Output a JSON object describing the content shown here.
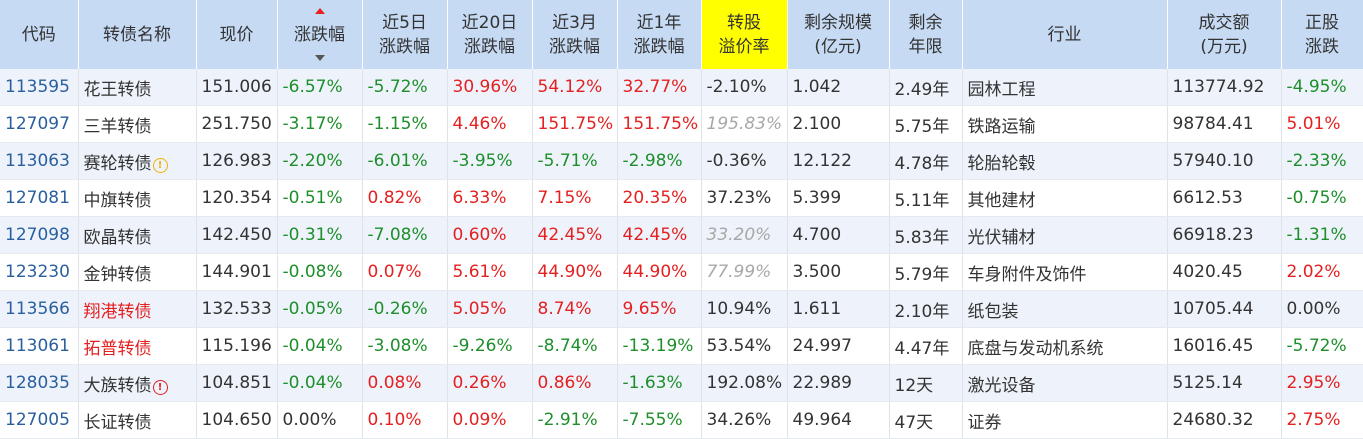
{
  "headers": [
    {
      "line1": "代码",
      "line2": ""
    },
    {
      "line1": "转债名称",
      "line2": ""
    },
    {
      "line1": "现价",
      "line2": ""
    },
    {
      "line1": "涨跌幅",
      "line2": ""
    },
    {
      "line1": "近5日",
      "line2": "涨跌幅"
    },
    {
      "line1": "近20日",
      "line2": "涨跌幅"
    },
    {
      "line1": "近3月",
      "line2": "涨跌幅"
    },
    {
      "line1": "近1年",
      "line2": "涨跌幅"
    },
    {
      "line1": "转股",
      "line2": "溢价率"
    },
    {
      "line1": "剩余规模",
      "line2": "(亿元)"
    },
    {
      "line1": "剩余",
      "line2": "年限"
    },
    {
      "line1": "行业",
      "line2": ""
    },
    {
      "line1": "成交额",
      "line2": "(万元)"
    },
    {
      "line1": "正股",
      "line2": "涨跌"
    }
  ],
  "warn_icon_glyph": "!",
  "colors": {
    "up": "#e42020",
    "down": "#1d8f2a",
    "code": "#2a5f9e",
    "header_bg": "#c6daf3",
    "highlight_header": "#ffff00",
    "muted": "#a8a8a8"
  },
  "rows": [
    {
      "code": "113595",
      "name": "花王转债",
      "name_color": "normal",
      "warn": "",
      "price": "151.006",
      "chg": "-6.57%",
      "chg5": "-5.72%",
      "chg20": "30.96%",
      "chg3m": "54.12%",
      "chg1y": "32.77%",
      "premium": "-2.10%",
      "premium_muted": false,
      "scale": "1.042",
      "years": "2.49年",
      "industry": "园林工程",
      "volume": "113774.92",
      "stock_chg": "-4.95%"
    },
    {
      "code": "127097",
      "name": "三羊转债",
      "name_color": "normal",
      "warn": "",
      "price": "251.750",
      "chg": "-3.17%",
      "chg5": "-1.15%",
      "chg20": "4.46%",
      "chg3m": "151.75%",
      "chg1y": "151.75%",
      "premium": "195.83%",
      "premium_muted": true,
      "scale": "2.100",
      "years": "5.75年",
      "industry": "铁路运输",
      "volume": "98784.41",
      "stock_chg": "5.01%"
    },
    {
      "code": "113063",
      "name": "赛轮转债",
      "name_color": "normal",
      "warn": "yellow",
      "price": "126.983",
      "chg": "-2.20%",
      "chg5": "-6.01%",
      "chg20": "-3.95%",
      "chg3m": "-5.71%",
      "chg1y": "-2.98%",
      "premium": "-0.36%",
      "premium_muted": false,
      "scale": "12.122",
      "years": "4.78年",
      "industry": "轮胎轮毂",
      "volume": "57940.10",
      "stock_chg": "-2.33%"
    },
    {
      "code": "127081",
      "name": "中旗转债",
      "name_color": "normal",
      "warn": "",
      "price": "120.354",
      "chg": "-0.51%",
      "chg5": "0.82%",
      "chg20": "6.33%",
      "chg3m": "7.15%",
      "chg1y": "20.35%",
      "premium": "37.23%",
      "premium_muted": false,
      "scale": "5.399",
      "years": "5.11年",
      "industry": "其他建材",
      "volume": "6612.53",
      "stock_chg": "-0.75%"
    },
    {
      "code": "127098",
      "name": "欧晶转债",
      "name_color": "normal",
      "warn": "",
      "price": "142.450",
      "chg": "-0.31%",
      "chg5": "-7.08%",
      "chg20": "0.60%",
      "chg3m": "42.45%",
      "chg1y": "42.45%",
      "premium": "33.20%",
      "premium_muted": true,
      "scale": "4.700",
      "years": "5.83年",
      "industry": "光伏辅材",
      "volume": "66918.23",
      "stock_chg": "-1.31%"
    },
    {
      "code": "123230",
      "name": "金钟转债",
      "name_color": "normal",
      "warn": "",
      "price": "144.901",
      "chg": "-0.08%",
      "chg5": "0.07%",
      "chg20": "5.61%",
      "chg3m": "44.90%",
      "chg1y": "44.90%",
      "premium": "77.99%",
      "premium_muted": true,
      "scale": "3.500",
      "years": "5.79年",
      "industry": "车身附件及饰件",
      "volume": "4020.45",
      "stock_chg": "2.02%"
    },
    {
      "code": "113566",
      "name": "翔港转债",
      "name_color": "red",
      "warn": "",
      "price": "132.533",
      "chg": "-0.05%",
      "chg5": "-0.26%",
      "chg20": "5.05%",
      "chg3m": "8.74%",
      "chg1y": "9.65%",
      "premium": "10.94%",
      "premium_muted": false,
      "scale": "1.611",
      "years": "2.10年",
      "industry": "纸包装",
      "volume": "10705.44",
      "stock_chg": "0.00%"
    },
    {
      "code": "113061",
      "name": "拓普转债",
      "name_color": "red",
      "warn": "",
      "price": "115.196",
      "chg": "-0.04%",
      "chg5": "-3.08%",
      "chg20": "-9.26%",
      "chg3m": "-8.74%",
      "chg1y": "-13.19%",
      "premium": "53.54%",
      "premium_muted": false,
      "scale": "24.997",
      "years": "4.47年",
      "industry": "底盘与发动机系统",
      "volume": "16016.45",
      "stock_chg": "-5.72%"
    },
    {
      "code": "128035",
      "name": "大族转债",
      "name_color": "normal",
      "warn": "red",
      "price": "104.851",
      "chg": "-0.04%",
      "chg5": "0.08%",
      "chg20": "0.26%",
      "chg3m": "0.86%",
      "chg1y": "-1.63%",
      "premium": "192.08%",
      "premium_muted": false,
      "scale": "22.989",
      "years": "12天",
      "industry": "激光设备",
      "volume": "5125.14",
      "stock_chg": "2.95%"
    },
    {
      "code": "127005",
      "name": "长证转债",
      "name_color": "normal",
      "warn": "",
      "price": "104.650",
      "chg": "0.00%",
      "chg5": "0.10%",
      "chg20": "0.09%",
      "chg3m": "-2.91%",
      "chg1y": "-7.55%",
      "premium": "34.26%",
      "premium_muted": false,
      "scale": "49.964",
      "years": "47天",
      "industry": "证券",
      "volume": "24680.32",
      "stock_chg": "2.75%"
    }
  ]
}
